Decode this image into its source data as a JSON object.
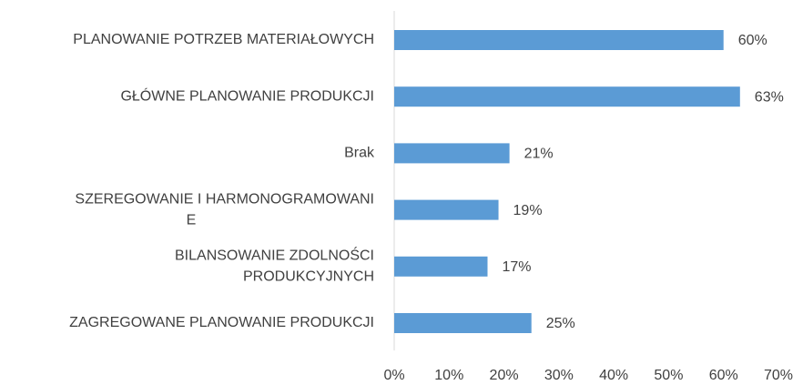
{
  "chart_data": {
    "type": "bar",
    "orientation": "horizontal",
    "categories": [
      [
        "PLANOWANIE  POTRZEB MATERIAŁOWYCH"
      ],
      [
        "GŁÓWNE PLANOWANIE PRODUKCJI"
      ],
      [
        "Brak"
      ],
      [
        "SZEREGOWANIE I HARMONOGRAMOWANI",
        "E"
      ],
      [
        "BILANSOWANIE ZDOLNOŚCI",
        "PRODUKCYJNYCH"
      ],
      [
        "ZAGREGOWANE PLANOWANIE PRODUKCJI"
      ]
    ],
    "values": [
      60,
      63,
      21,
      19,
      17,
      25
    ],
    "value_labels": [
      "60%",
      "63%",
      "21%",
      "19%",
      "17%",
      "25%"
    ],
    "color": "#5b9bd5",
    "xlim": [
      0,
      70
    ],
    "xticks": [
      {
        "value": 0,
        "label": "0%"
      },
      {
        "value": 10,
        "label": "10%"
      },
      {
        "value": 20,
        "label": "20%"
      },
      {
        "value": 30,
        "label": "30%"
      },
      {
        "value": 40,
        "label": "40%"
      },
      {
        "value": 50,
        "label": "50%"
      },
      {
        "value": 60,
        "label": "60%"
      },
      {
        "value": 70,
        "label": "70%"
      }
    ],
    "grid": false
  }
}
